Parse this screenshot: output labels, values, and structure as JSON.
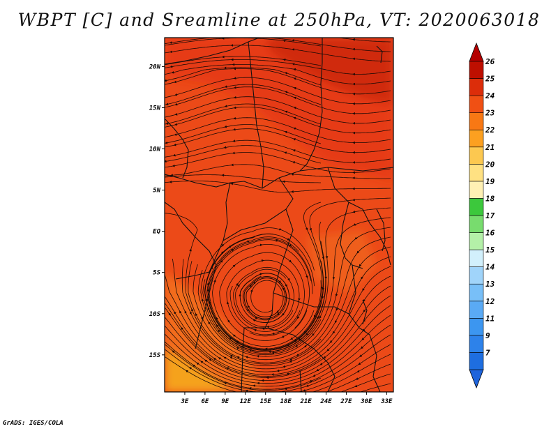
{
  "title": "WBPT [C] and Sreamline at 250hPa, VT: 2020063018",
  "footer": "GrADS: IGES/COLA",
  "lat_ticks": [
    "20N",
    "15N",
    "10N",
    "5N",
    "EQ",
    "5S",
    "10S",
    "15S"
  ],
  "lat_values": [
    20,
    15,
    10,
    5,
    0,
    -5,
    -10,
    -15
  ],
  "lon_ticks": [
    "3E",
    "6E",
    "9E",
    "12E",
    "15E",
    "18E",
    "21E",
    "24E",
    "27E",
    "30E",
    "33E"
  ],
  "lon_values": [
    3,
    6,
    9,
    12,
    15,
    18,
    21,
    24,
    27,
    30,
    33
  ],
  "colorbar": {
    "labels": [
      "7",
      "9",
      "11",
      "12",
      "13",
      "14",
      "15",
      "16",
      "17",
      "18",
      "19",
      "20",
      "21",
      "22",
      "23",
      "24",
      "25",
      "26"
    ],
    "colors": [
      "#1e6ee0",
      "#2d82ea",
      "#3c96f0",
      "#5aaaf5",
      "#78bff8",
      "#a0d4fa",
      "#d2f0fc",
      "#b4f0a8",
      "#78dc6e",
      "#3cc83c",
      "#fff0b4",
      "#ffe182",
      "#fcc850",
      "#fca020",
      "#f87814",
      "#f05014",
      "#dc2d0a",
      "#be0f00"
    ],
    "low_arrow_color": "#1e64dc",
    "high_arrow_color": "#b40000"
  },
  "field_colors": {
    "dominant": "#ec4a18",
    "warm": "#e23216",
    "warmest": "#d02a10",
    "cool": "#f26c1a",
    "coolest": "#f5a21c"
  },
  "vortex_label": "cyclonic circulation near 16E 10S"
}
